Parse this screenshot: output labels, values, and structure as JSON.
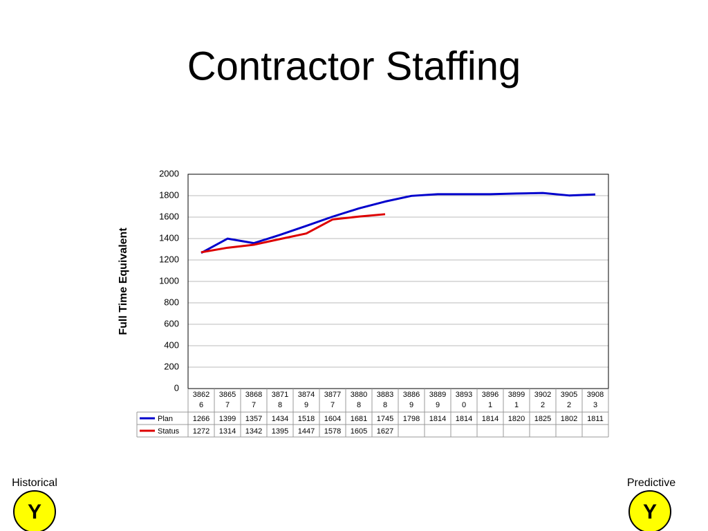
{
  "chart_data": {
    "type": "line",
    "title": "Contractor Staffing",
    "ylabel": "Full Time Equivalent",
    "categories": [
      "38626",
      "38657",
      "38687",
      "38718",
      "38749",
      "38777",
      "38808",
      "38838",
      "38869",
      "38899",
      "38930",
      "38961",
      "38991",
      "39022",
      "39052",
      "39083"
    ],
    "series": [
      {
        "name": "Plan",
        "color": "#0000cc",
        "values": [
          1266,
          1399,
          1357,
          1434,
          1518,
          1604,
          1681,
          1745,
          1798,
          1814,
          1814,
          1814,
          1820,
          1825,
          1802,
          1811
        ]
      },
      {
        "name": "Status",
        "color": "#dd0000",
        "values": [
          1272,
          1314,
          1342,
          1395,
          1447,
          1578,
          1605,
          1627,
          null,
          null,
          null,
          null,
          null,
          null,
          null,
          null
        ]
      }
    ],
    "ylim": [
      0,
      2000
    ],
    "yticks": [
      0,
      200,
      400,
      600,
      800,
      1000,
      1200,
      1400,
      1600,
      1800,
      2000
    ],
    "grid": true
  },
  "footer": {
    "left_label": "Historical",
    "left_badge": "Y",
    "right_label": "Predictive",
    "right_badge": "Y"
  }
}
